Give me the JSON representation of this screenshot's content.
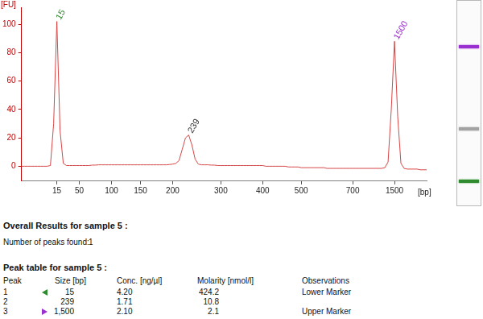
{
  "chart_data": {
    "type": "line",
    "x_label": "[bp]",
    "y_label": "[FU]",
    "categories": [
      null,
      null,
      null,
      null,
      null,
      null,
      null,
      null,
      null,
      null,
      null,
      "15",
      null,
      null,
      null,
      null,
      null,
      null,
      "50",
      null,
      null,
      null,
      null,
      null,
      null,
      null,
      null,
      null,
      "100",
      null,
      null,
      null,
      null,
      null,
      null,
      null,
      null,
      "150",
      null,
      null,
      null,
      null,
      null,
      null,
      null,
      null,
      null,
      "200",
      null,
      null,
      null,
      null,
      null,
      null,
      null,
      null,
      null,
      null,
      null,
      null,
      null,
      null,
      "300",
      null,
      null,
      null,
      null,
      null,
      null,
      null,
      null,
      null,
      null,
      null,
      null,
      "400",
      null,
      null,
      null,
      null,
      null,
      null,
      null,
      null,
      null,
      null,
      null,
      "500",
      null,
      null,
      null,
      null,
      null,
      null,
      null,
      null,
      null,
      null,
      null,
      null,
      null,
      null,
      null,
      "700",
      null,
      null,
      null,
      null,
      null,
      null,
      null,
      null,
      null,
      null,
      null,
      null,
      "1500",
      null,
      null,
      null,
      null,
      null,
      null,
      null,
      null,
      null,
      null
    ],
    "values": [
      0,
      0,
      0,
      0,
      0,
      0,
      0,
      0,
      0,
      0.5,
      30,
      102,
      25,
      2,
      0.5,
      0.5,
      0.5,
      0.5,
      0.5,
      0.5,
      0.5,
      0.5,
      0.8,
      0.8,
      1,
      1,
      1,
      1,
      1,
      1,
      1,
      1,
      1,
      1,
      1,
      1,
      1,
      1,
      1,
      1,
      1,
      1,
      1,
      1,
      1,
      1,
      1.2,
      1.5,
      2,
      4,
      12,
      20,
      22,
      15,
      5,
      1.5,
      1,
      1,
      1,
      0.8,
      0.8,
      0.5,
      0.5,
      0.5,
      0.5,
      0.5,
      0.5,
      0.5,
      0.5,
      0.5,
      0.5,
      0.5,
      0.5,
      0.5,
      0.5,
      0.5,
      0,
      0,
      0,
      0,
      0,
      0,
      0,
      -0.5,
      -0.5,
      -0.5,
      -0.5,
      -1,
      -1,
      -1,
      -1,
      -1,
      -1,
      -1,
      -1,
      -1.5,
      -1.5,
      -1.5,
      -1.5,
      -1.5,
      -1.5,
      -1.5,
      -1.5,
      -1.5,
      -1.5,
      -1.5,
      -1.5,
      -1.5,
      -1.5,
      -1.5,
      -1.5,
      -1.5,
      -1.5,
      -1,
      3,
      40,
      88,
      35,
      2,
      -1.5,
      -2,
      -2,
      -2,
      -2,
      -2.5,
      -2.5,
      -2.5
    ],
    "color": "#d94545",
    "marker": "none",
    "ylim": [
      -10,
      112
    ],
    "yticks": [
      0,
      20,
      40,
      60,
      80,
      100
    ],
    "grid": false,
    "annotations": [
      {
        "text": "15",
        "index": 11,
        "color": "#2e8b2e"
      },
      {
        "text": "239",
        "index": 52,
        "color": "#333333"
      },
      {
        "text": "1500",
        "index": 116,
        "color": "#9b30d0"
      }
    ]
  },
  "overall_results": {
    "title": "Overall Results for sample 5 :",
    "label": "Number of peaks found:",
    "value": "1"
  },
  "peak_table": {
    "title": "Peak table for sample 5 :",
    "columns": [
      "Peak",
      "Size [bp]",
      "Conc. [ng/µl]",
      "Molarity [nmol/l]",
      "Observations"
    ],
    "rows": [
      [
        "1",
        "15",
        "4.20",
        "424.2",
        "Lower Marker"
      ],
      [
        "2",
        "239",
        "1.71",
        "10.8",
        null
      ],
      [
        "3",
        "1,500",
        "2.10",
        "2.1",
        "Upper Marker"
      ]
    ]
  }
}
